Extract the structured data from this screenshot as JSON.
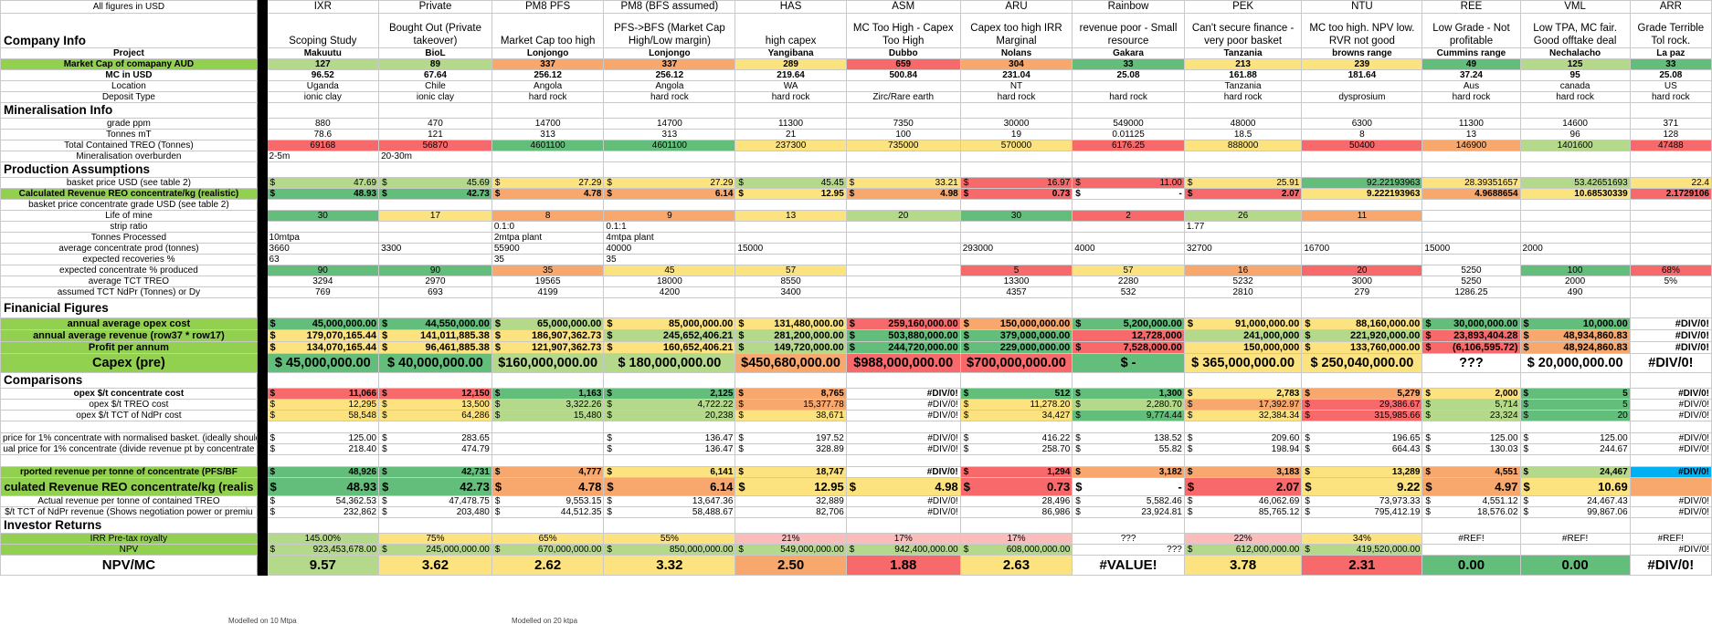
{
  "app": "Spreadsheet",
  "colors": {
    "green": "#63be7b",
    "lightgreen": "#b5d98a",
    "yellow": "#fce37f",
    "orange": "#f8a76d",
    "red": "#f8696b",
    "pink": "#fbbcbc",
    "lime": "#92d050",
    "cyan": "#00b0f0"
  },
  "corner_label": "All figures in USD",
  "columns": [
    "IXR",
    "Private",
    "PM8 PFS",
    "PM8 (BFS assumed)",
    "HAS",
    "ASM",
    "ARU",
    "Rainbow",
    "PEK",
    "NTU",
    "REE",
    "VML",
    "ARR"
  ],
  "notes": [
    "Scoping Study",
    "Bought Out (Private takeover)",
    "Market Cap too high",
    "PFS->BFS (Market Cap High/Low margin)",
    "high capex",
    "MC Too High - Capex Too High",
    "Capex too high IRR Marginal",
    "revenue poor - Small resource",
    "Can't secure finance - very poor basket",
    "MC too high. NPV low. RVR not good",
    "Low Grade - Not profitable",
    "Low TPA, MC fair. Good offtake deal",
    "Grade Terrible Tol rock."
  ],
  "sections": {
    "company": "Company Info",
    "mineral": "Mineralisation Info",
    "production": "Production Assumptions",
    "financial": "Finanicial Figures",
    "comparisons": "Comparisons",
    "investor": "Investor Returns"
  },
  "rows": {
    "project": {
      "label": "Project",
      "cells": [
        "Makuutu",
        "BioL",
        "Lonjongo",
        "Lonjongo",
        "Yangibana",
        "Dubbo",
        "Nolans",
        "Gakara",
        "Tanzania",
        "browns range",
        "Cummins range",
        "Nechalacho",
        "La paz"
      ]
    },
    "mcap_aud": {
      "label": "Market Cap of comapany AUD",
      "cells": [
        "127",
        "89",
        "337",
        "337",
        "289",
        "659",
        "304",
        "33",
        "213",
        "239",
        "49",
        "125",
        "33"
      ]
    },
    "mc_usd": {
      "label": "MC in USD",
      "cells": [
        "96.52",
        "67.64",
        "256.12",
        "256.12",
        "219.64",
        "500.84",
        "231.04",
        "25.08",
        "161.88",
        "181.64",
        "37.24",
        "95",
        "25.08"
      ]
    },
    "location": {
      "label": "Location",
      "cells": [
        "Uganda",
        "Chile",
        "Angola",
        "Angola",
        "WA",
        "",
        "NT",
        "",
        "Tanzania",
        "",
        "Aus",
        "canada",
        "US"
      ]
    },
    "deposit": {
      "label": "Deposit Type",
      "cells": [
        "ionic clay",
        "ionic clay",
        "hard rock",
        "hard rock",
        "hard rock",
        "Zirc/Rare earth",
        "hard rock",
        "hard rock",
        "hard rock",
        "dysprosium",
        "hard rock",
        "hard rock",
        "hard rock"
      ]
    },
    "grade": {
      "label": "grade ppm",
      "cells": [
        "880",
        "470",
        "14700",
        "14700",
        "11300",
        "7350",
        "30000",
        "549000",
        "48000",
        "6300",
        "11300",
        "14600",
        "371"
      ]
    },
    "tonnes": {
      "label": "Tonnes mT",
      "cells": [
        "78.6",
        "121",
        "313",
        "313",
        "21",
        "100",
        "19",
        "0.01125",
        "18.5",
        "8",
        "13",
        "96",
        "128"
      ]
    },
    "treo": {
      "label": "Total Contained TREO (Tonnes)",
      "cells": [
        "69168",
        "56870",
        "4601100",
        "4601100",
        "237300",
        "735000",
        "570000",
        "6176.25",
        "888000",
        "50400",
        "146900",
        "1401600",
        "47488"
      ]
    },
    "overburden": {
      "label": "Mineralisation overburden",
      "cells": [
        "2-5m",
        "20-30m",
        "",
        "",
        "",
        "",
        "",
        "",
        "",
        "",
        "",
        "",
        ""
      ]
    },
    "basket": {
      "label": "basket price USD (see table 2)",
      "cells": [
        "47.69",
        "45.69",
        "27.29",
        "27.29",
        "45.45",
        "33.21",
        "16.97",
        "11.00",
        "25.91",
        "92.22193963",
        "28.39351657",
        "53.42651693",
        "22.4"
      ]
    },
    "calc_rev": {
      "label": "Calculated Revenue REO concentrate/kg (realistic)",
      "cells": [
        "48.93",
        "42.73",
        "4.78",
        "6.14",
        "12.95",
        "4.98",
        "0.73",
        "-",
        "2.07",
        "9.222193963",
        "4.9688654",
        "10.68530339",
        "2.1729106"
      ]
    },
    "basket_grade": {
      "label": "basket price concentrate grade USD (see table 2)",
      "cells": [
        "",
        "",
        "",
        "",
        "",
        "",
        "",
        "",
        "",
        "",
        "",
        "",
        ""
      ]
    },
    "life": {
      "label": "Life of mine",
      "cells": [
        "30",
        "17",
        "8",
        "9",
        "13",
        "20",
        "30",
        "2",
        "26",
        "11",
        "",
        "",
        ""
      ]
    },
    "strip": {
      "label": "strip ratio",
      "cells": [
        "",
        "",
        "0.1:0",
        "0.1:1",
        "",
        "",
        "",
        "",
        "1.77",
        "",
        "",
        "",
        ""
      ]
    },
    "processed": {
      "label": "Tonnes Processed",
      "cells": [
        "10mtpa",
        "",
        "2mtpa plant",
        "4mtpa plant",
        "",
        "",
        "",
        "",
        "",
        "",
        "",
        "",
        ""
      ]
    },
    "avg_conc": {
      "label": "average concentrate prod (tonnes)",
      "cells": [
        "3660",
        "3300",
        "55900",
        "40000",
        "15000",
        "",
        "293000",
        "4000",
        "32700",
        "16700",
        "15000",
        "2000",
        ""
      ]
    },
    "recov": {
      "label": "expected recoveries %",
      "cells": [
        "63",
        "",
        "35",
        "35",
        "",
        "",
        "",
        "",
        "",
        "",
        "",
        "",
        ""
      ]
    },
    "conc_pct": {
      "label": "expected concentrate % produced",
      "cells": [
        "90",
        "90",
        "35",
        "45",
        "57",
        "",
        "5",
        "57",
        "16",
        "20",
        "5250",
        "100",
        "68%"
      ]
    },
    "tct_treo": {
      "label": "average TCT TREO",
      "cells": [
        "3294",
        "2970",
        "19565",
        "18000",
        "8550",
        "",
        "13300",
        "2280",
        "5232",
        "3000",
        "5250",
        "2000",
        "5%"
      ]
    },
    "tct_ndpr": {
      "label": "assumed TCT NdPr (Tonnes) or Dy",
      "cells": [
        "769",
        "693",
        "4199",
        "4200",
        "3400",
        "",
        "4357",
        "532",
        "2810",
        "279",
        "1286.25",
        "490",
        ""
      ]
    },
    "opex": {
      "label": "annual average opex cost",
      "cells": [
        "45,000,000.00",
        "44,550,000.00",
        "65,000,000.00",
        "85,000,000.00",
        "131,480,000.00",
        "259,160,000.00",
        "150,000,000.00",
        "5,200,000.00",
        "91,000,000.00",
        "88,160,000.00",
        "30,000,000.00",
        "10,000.00",
        "#DIV/0!"
      ]
    },
    "revenue": {
      "label": "annual average revenue (row37 * row17)",
      "cells": [
        "179,070,165.44",
        "141,011,885.38",
        "186,907,362.73",
        "245,652,406.21",
        "281,200,000.00",
        "503,880,000.00",
        "379,000,000.00",
        "12,728,000",
        "241,000,000",
        "221,920,000.00",
        "23,893,404.28",
        "48,934,860.83",
        "#DIV/0!"
      ]
    },
    "profit": {
      "label": "Profit per annum",
      "cells": [
        "134,070,165.44",
        "96,461,885.38",
        "121,907,362.73",
        "160,652,406.21",
        "149,720,000.00",
        "244,720,000.00",
        "229,000,000.00",
        "7,528,000.00",
        "150,000,000",
        "133,760,000.00",
        "(6,106,595.72)",
        "48,924,860.83",
        "#DIV/0!"
      ]
    },
    "capex": {
      "label": "Capex (pre)",
      "cells": [
        "$ 45,000,000.00",
        "$ 40,000,000.00",
        "$160,000,000.00",
        "$ 180,000,000.00",
        "$450,680,000.00",
        "$988,000,000.00",
        "$700,000,000.00",
        "$ -",
        "$ 365,000,000.00",
        "$ 250,040,000.00",
        "???",
        "$ 20,000,000.00",
        "#DIV/0!"
      ]
    },
    "opex_t": {
      "label": "opex $/t concentrate cost",
      "cells": [
        "11,066",
        "12,150",
        "1,163",
        "2,125",
        "8,765",
        "#DIV/0!",
        "512",
        "1,300",
        "2,783",
        "5,279",
        "2,000",
        "5",
        "#DIV/0!"
      ]
    },
    "opex_treo": {
      "label": "opex $/t TREO cost",
      "cells": [
        "12,295",
        "13,500",
        "3,322.26",
        "4,722.22",
        "15,377.78",
        "#DIV/0!",
        "11,278.20",
        "2,280.70",
        "17,392.97",
        "29,386.67",
        "5,714",
        "5",
        "#DIV/0!"
      ]
    },
    "opex_ndpr": {
      "label": "opex $/t TCT of NdPr cost",
      "cells": [
        "58,548",
        "64,286",
        "15,480",
        "20,238",
        "38,671",
        "#DIV/0!",
        "34,427",
        "9,774.44",
        "32,384.34",
        "315,985.66",
        "23,324",
        "20",
        "#DIV/0!"
      ]
    },
    "price_norm": {
      "label": "price for 1% concentrate with normalised basket. (ideally should",
      "cells": [
        "125.00",
        "283.65",
        "",
        "136.47",
        "197.52",
        "#DIV/0!",
        "416.22",
        "138.52",
        "209.60",
        "196.65",
        "125.00",
        "125.00",
        "#DIV/0!"
      ]
    },
    "actual_price": {
      "label": "ual price for 1% concentrate (divide revenue pt by concentrate",
      "cells": [
        "218.40",
        "474.79",
        "",
        "136.47",
        "328.89",
        "#DIV/0!",
        "258.70",
        "55.82",
        "198.94",
        "664.43",
        "130.03",
        "244.67",
        "#DIV/0!"
      ]
    },
    "reported_rev": {
      "label": "rported revenue per tonne of concentrate (PFS/BF",
      "cells": [
        "48,926",
        "42,731",
        "4,777",
        "6,141",
        "18,747",
        "#DIV/0!",
        "1,294",
        "3,182",
        "3,183",
        "13,289",
        "4,551",
        "24,467",
        "#DIV/0!"
      ]
    },
    "calc_rev2": {
      "label": "culated Revenue REO concentrate/kg (realis",
      "cells": [
        "48.93",
        "42.73",
        "4.78",
        "6.14",
        "12.95",
        "4.98",
        "0.73",
        "-",
        "2.07",
        "9.22",
        "4.97",
        "10.69",
        ""
      ]
    },
    "rev_treo": {
      "label": "Actual revenue per tonne of contained TREO",
      "cells": [
        "54,362.53",
        "47,478.75",
        "9,553.15",
        "13,647.36",
        "32,889",
        "#DIV/0!",
        "28,496",
        "5,582.46",
        "46,062.69",
        "73,973.33",
        "4,551.12",
        "24,467.43",
        "#DIV/0!"
      ]
    },
    "rev_ndpr": {
      "label": "$/t TCT of NdPr revenue (Shows negotiation power or premiu",
      "cells": [
        "232,862",
        "203,480",
        "44,512.35",
        "58,488.67",
        "82,706",
        "#DIV/0!",
        "86,986",
        "23,924.81",
        "85,765.12",
        "795,412.19",
        "18,576.02",
        "99,867.06",
        "#DIV/0!"
      ]
    },
    "irr": {
      "label": "IRR Pre-tax royalty",
      "cells": [
        "145.00%",
        "75%",
        "65%",
        "55%",
        "21%",
        "17%",
        "17%",
        "???",
        "22%",
        "34%",
        "#REF!",
        "#REF!",
        "#REF!"
      ]
    },
    "npv": {
      "label": "NPV",
      "cells": [
        "923,453,678.00",
        "245,000,000.00",
        "670,000,000.00",
        "850,000,000.00",
        "549,000,000.00",
        "942,400,000.00",
        "608,000,000.00",
        "???",
        "612,000,000.00",
        "419,520,000.00",
        "",
        "",
        "#DIV/0!"
      ]
    },
    "npv_mc": {
      "label": "NPV/MC",
      "cells": [
        "9.57",
        "3.62",
        "2.62",
        "3.32",
        "2.50",
        "1.88",
        "2.63",
        "#VALUE!",
        "3.78",
        "2.31",
        "0.00",
        "0.00",
        "#DIV/0!"
      ]
    }
  },
  "footer_notes": [
    "Modelled on 10 Mtpa",
    "Modelled on 20 ktpa"
  ]
}
